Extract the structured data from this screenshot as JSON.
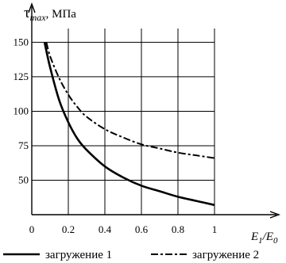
{
  "chart_data": {
    "type": "line",
    "ylabel": {
      "main": "τ",
      "sub": "max",
      "rest": ", МПа"
    },
    "xlabel": {
      "e1": "E",
      "sub1": "1",
      "slash": "/",
      "e0": "E",
      "sub0": "0"
    },
    "xlim": [
      0,
      1
    ],
    "ylim": [
      25,
      160
    ],
    "x_ticks": [
      {
        "value": 0,
        "label": "0"
      },
      {
        "value": 0.2,
        "label": "0.2"
      },
      {
        "value": 0.4,
        "label": "0.4"
      },
      {
        "value": 0.6,
        "label": "0.6"
      },
      {
        "value": 0.8,
        "label": "0.8"
      },
      {
        "value": 1,
        "label": "1"
      }
    ],
    "y_ticks": [
      {
        "value": 50,
        "label": "50"
      },
      {
        "value": 75,
        "label": "75"
      },
      {
        "value": 100,
        "label": "100"
      },
      {
        "value": 125,
        "label": "125"
      },
      {
        "value": 150,
        "label": "150"
      }
    ],
    "grid": true,
    "legend_position": "bottom",
    "series": [
      {
        "name": "загружение 1",
        "style": "solid",
        "x": [
          0.07,
          0.1,
          0.15,
          0.2,
          0.25,
          0.3,
          0.4,
          0.5,
          0.6,
          0.7,
          0.8,
          0.9,
          1.0
        ],
        "y": [
          150,
          132,
          108,
          92,
          80,
          72,
          60,
          52,
          46,
          42,
          38,
          35,
          32
        ]
      },
      {
        "name": "загружение 2",
        "style": "dashed",
        "x": [
          0.08,
          0.1,
          0.15,
          0.2,
          0.25,
          0.3,
          0.4,
          0.5,
          0.6,
          0.7,
          0.8,
          0.9,
          1.0
        ],
        "y": [
          150,
          140,
          124,
          112,
          103,
          96,
          87,
          81,
          76,
          73,
          70,
          68,
          66
        ]
      }
    ]
  }
}
